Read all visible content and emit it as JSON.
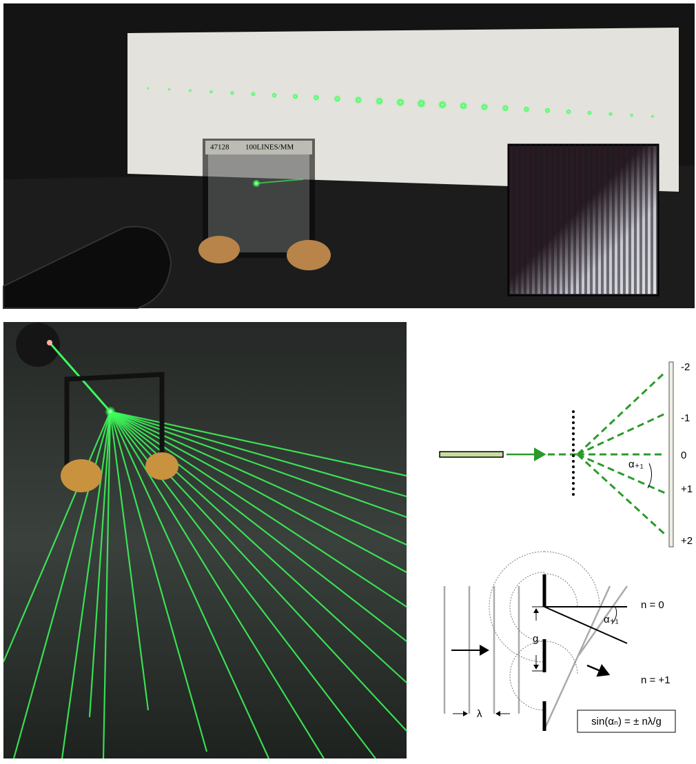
{
  "photo_top": {
    "grating_label": [
      "47128",
      "100LINES/MM"
    ]
  },
  "diagram_orders": {
    "orders": [
      "-2",
      "-1",
      "0",
      "+1",
      "+2"
    ],
    "angle_label": "α₊₁"
  },
  "diagram_wavefronts": {
    "order_labels": [
      "n = 0",
      "n = +1"
    ],
    "angle_label": "α₊₁",
    "spacing_label": "g",
    "wavelength_label": "λ",
    "formula": "sin(αₙ) = ± nλ/g"
  }
}
